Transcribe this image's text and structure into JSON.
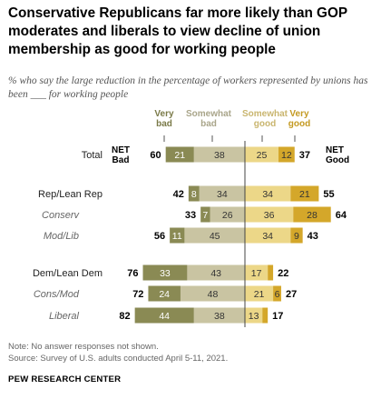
{
  "title": "Conservative Republicans far more likely than GOP moderates and liberals to view decline of union membership as good for working people",
  "subtitle": "% who say the large reduction in the percentage of workers represented by unions has been ___ for working people",
  "legend": {
    "very_bad": "Very bad",
    "somewhat_bad": "Somewhat bad",
    "somewhat_good": "Somewhat good",
    "very_good": "Very good"
  },
  "net_labels": {
    "net_bad": "NET Bad",
    "net_good": "NET Good"
  },
  "colors": {
    "very_bad": "#8a8a54",
    "somewhat_bad": "#c9c4a2",
    "somewhat_good": "#ecd788",
    "very_good": "#d4a72a",
    "divider": "#444444"
  },
  "chart_data": {
    "type": "bar",
    "orientation": "horizontal-diverging",
    "categories": [
      "Total",
      "Rep/Lean Rep",
      "Conserv",
      "Mod/Lib",
      "Dem/Lean Dem",
      "Cons/Mod",
      "Liberal"
    ],
    "category_style": [
      "main",
      "main",
      "sub",
      "sub",
      "main",
      "sub",
      "sub"
    ],
    "series": [
      {
        "name": "Very bad",
        "values": [
          21,
          8,
          7,
          11,
          33,
          24,
          44
        ]
      },
      {
        "name": "Somewhat bad",
        "values": [
          38,
          34,
          26,
          45,
          43,
          48,
          38
        ]
      },
      {
        "name": "Somewhat good",
        "values": [
          25,
          34,
          36,
          34,
          17,
          21,
          13
        ]
      },
      {
        "name": "Very good",
        "values": [
          12,
          21,
          28,
          9,
          4,
          6,
          4
        ]
      }
    ],
    "net_bad": [
      60,
      42,
      33,
      56,
      76,
      72,
      82
    ],
    "net_good": [
      37,
      55,
      64,
      43,
      22,
      27,
      17
    ],
    "shown_labels": {
      "very_good": [
        "12",
        "21",
        "28",
        "9",
        "",
        "6",
        ""
      ]
    }
  },
  "notes": {
    "note": "Note: No answer responses not shown.",
    "source": "Source: Survey of U.S. adults conducted April 5-11, 2021."
  },
  "org": "PEW RESEARCH CENTER"
}
